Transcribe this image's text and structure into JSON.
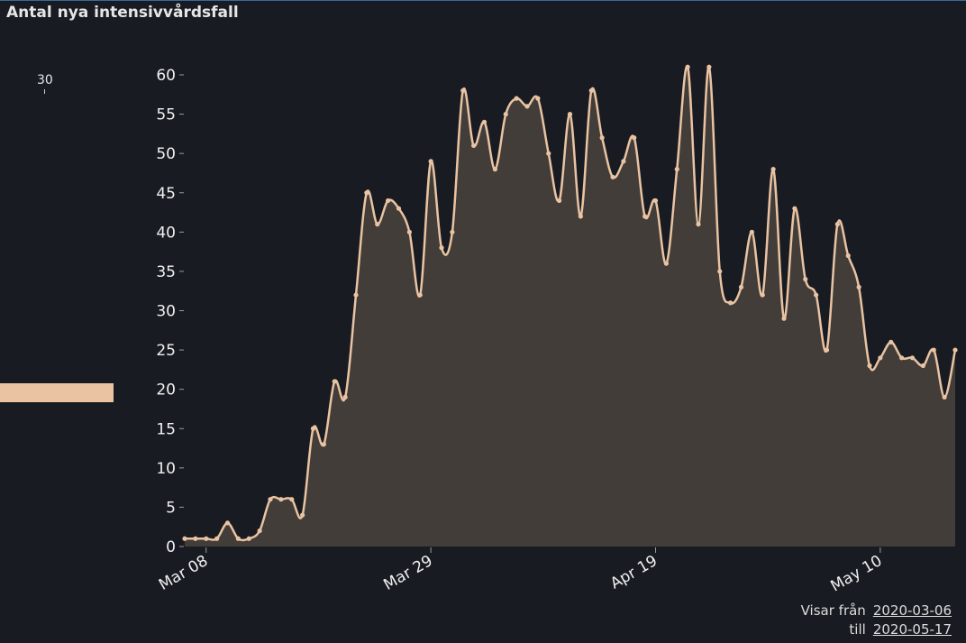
{
  "title": "Antal nya intensivvårdsfall",
  "mini": {
    "label": "30"
  },
  "range": {
    "from_label": "Visar från",
    "from_date": "2020-03-06",
    "to_label": "till",
    "to_date": "2020-05-17"
  },
  "colors": {
    "line": "#e9c3a2",
    "area": "#433d39",
    "background": "#181c22"
  },
  "chart_data": {
    "type": "area",
    "title": "Antal nya intensivvårdsfall",
    "xlabel": "",
    "ylabel": "",
    "ylim": [
      0,
      60
    ],
    "yticks": [
      0,
      5,
      10,
      15,
      20,
      25,
      30,
      35,
      40,
      45,
      50,
      55,
      60
    ],
    "xticks": [
      "Mar 08",
      "Mar 29",
      "Apr 19",
      "May 10"
    ],
    "x_start": "2020-03-06",
    "x_end": "2020-05-17",
    "grid": false,
    "series": [
      {
        "values": [
          1,
          1,
          1,
          1,
          3,
          1,
          1,
          2,
          6,
          6,
          6,
          4,
          15,
          13,
          21,
          19,
          32,
          45,
          41,
          44,
          43,
          40,
          32,
          49,
          38,
          40,
          58,
          51,
          54,
          48,
          55,
          57,
          56,
          57,
          50,
          44,
          55,
          42,
          58,
          52,
          47,
          49,
          52,
          42,
          44,
          36,
          48,
          61,
          41,
          61,
          35,
          31,
          33,
          40,
          32,
          48,
          29,
          43,
          34,
          32,
          25,
          41,
          37,
          33,
          23,
          24,
          26,
          24,
          24,
          23,
          25,
          19,
          25
        ]
      }
    ]
  }
}
